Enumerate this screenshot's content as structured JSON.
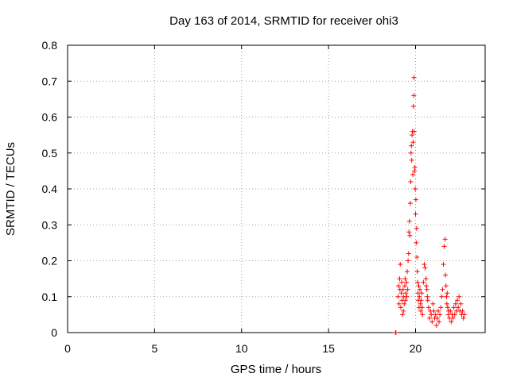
{
  "chart_data": {
    "type": "scatter",
    "title": "Day 163 of 2014, SRMTID for receiver ohi3",
    "xlabel": "GPS time / hours",
    "ylabel": "SRMTID / TECUs",
    "xlim": [
      0,
      24
    ],
    "ylim": [
      0,
      0.8
    ],
    "xticks": [
      "0",
      "5",
      "10",
      "15",
      "20"
    ],
    "xtick_values": [
      0,
      5,
      10,
      15,
      20
    ],
    "yticks": [
      "0",
      "0.1",
      "0.2",
      "0.3",
      "0.4",
      "0.5",
      "0.6",
      "0.7",
      "0.8"
    ],
    "ytick_values": [
      0,
      0.1,
      0.2,
      0.3,
      0.4,
      0.5,
      0.6,
      0.7,
      0.8
    ],
    "grid": true,
    "marker_color": "#ff0000",
    "marker": "+",
    "series": [
      {
        "name": "SRMTID",
        "points": [
          [
            18.85,
            0.0
          ],
          [
            18.87,
            0.0
          ],
          [
            19.0,
            0.1
          ],
          [
            19.02,
            0.13
          ],
          [
            19.05,
            0.08
          ],
          [
            19.08,
            0.15
          ],
          [
            19.1,
            0.12
          ],
          [
            19.12,
            0.19
          ],
          [
            19.15,
            0.07
          ],
          [
            19.18,
            0.11
          ],
          [
            19.2,
            0.14
          ],
          [
            19.22,
            0.09
          ],
          [
            19.25,
            0.05
          ],
          [
            19.28,
            0.12
          ],
          [
            19.3,
            0.06
          ],
          [
            19.32,
            0.1
          ],
          [
            19.35,
            0.08
          ],
          [
            19.38,
            0.13
          ],
          [
            19.4,
            0.15
          ],
          [
            19.42,
            0.09
          ],
          [
            19.45,
            0.11
          ],
          [
            19.48,
            0.14
          ],
          [
            19.5,
            0.1
          ],
          [
            19.52,
            0.17
          ],
          [
            19.55,
            0.12
          ],
          [
            19.57,
            0.2
          ],
          [
            19.6,
            0.22
          ],
          [
            19.62,
            0.28
          ],
          [
            19.65,
            0.31
          ],
          [
            19.67,
            0.27
          ],
          [
            19.7,
            0.36
          ],
          [
            19.72,
            0.42
          ],
          [
            19.74,
            0.5
          ],
          [
            19.76,
            0.52
          ],
          [
            19.78,
            0.48
          ],
          [
            19.8,
            0.55
          ],
          [
            19.82,
            0.56
          ],
          [
            19.84,
            0.44
          ],
          [
            19.86,
            0.53
          ],
          [
            19.88,
            0.63
          ],
          [
            19.9,
            0.66
          ],
          [
            19.91,
            0.71
          ],
          [
            19.92,
            0.56
          ],
          [
            19.94,
            0.45
          ],
          [
            19.96,
            0.46
          ],
          [
            19.98,
            0.4
          ],
          [
            20.0,
            0.33
          ],
          [
            20.02,
            0.37
          ],
          [
            20.04,
            0.25
          ],
          [
            20.06,
            0.29
          ],
          [
            20.08,
            0.21
          ],
          [
            20.1,
            0.17
          ],
          [
            20.12,
            0.14
          ],
          [
            20.14,
            0.11
          ],
          [
            20.16,
            0.09
          ],
          [
            20.18,
            0.13
          ],
          [
            20.2,
            0.07
          ],
          [
            20.22,
            0.1
          ],
          [
            20.25,
            0.12
          ],
          [
            20.28,
            0.08
          ],
          [
            20.3,
            0.06
          ],
          [
            20.32,
            0.09
          ],
          [
            20.35,
            0.11
          ],
          [
            20.38,
            0.07
          ],
          [
            20.4,
            0.05
          ],
          [
            20.45,
            0.14
          ],
          [
            20.5,
            0.19
          ],
          [
            20.55,
            0.18
          ],
          [
            20.6,
            0.15
          ],
          [
            20.62,
            0.13
          ],
          [
            20.65,
            0.12
          ],
          [
            20.68,
            0.1
          ],
          [
            20.7,
            0.09
          ],
          [
            20.75,
            0.07
          ],
          [
            20.8,
            0.04
          ],
          [
            20.85,
            0.06
          ],
          [
            20.9,
            0.05
          ],
          [
            20.95,
            0.03
          ],
          [
            21.0,
            0.08
          ],
          [
            21.05,
            0.06
          ],
          [
            21.1,
            0.04
          ],
          [
            21.15,
            0.05
          ],
          [
            21.2,
            0.02
          ],
          [
            21.25,
            0.04
          ],
          [
            21.3,
            0.06
          ],
          [
            21.35,
            0.03
          ],
          [
            21.4,
            0.05
          ],
          [
            21.45,
            0.07
          ],
          [
            21.5,
            0.1
          ],
          [
            21.55,
            0.12
          ],
          [
            21.6,
            0.19
          ],
          [
            21.65,
            0.24
          ],
          [
            21.7,
            0.26
          ],
          [
            21.72,
            0.16
          ],
          [
            21.75,
            0.13
          ],
          [
            21.78,
            0.1
          ],
          [
            21.8,
            0.08
          ],
          [
            21.82,
            0.11
          ],
          [
            21.85,
            0.07
          ],
          [
            21.88,
            0.05
          ],
          [
            21.9,
            0.06
          ],
          [
            21.95,
            0.04
          ],
          [
            22.0,
            0.06
          ],
          [
            22.05,
            0.03
          ],
          [
            22.1,
            0.05
          ],
          [
            22.15,
            0.04
          ],
          [
            22.2,
            0.07
          ],
          [
            22.25,
            0.05
          ],
          [
            22.3,
            0.08
          ],
          [
            22.35,
            0.06
          ],
          [
            22.4,
            0.09
          ],
          [
            22.45,
            0.07
          ],
          [
            22.5,
            0.1
          ],
          [
            22.55,
            0.06
          ],
          [
            22.6,
            0.08
          ],
          [
            22.65,
            0.05
          ],
          [
            22.7,
            0.06
          ],
          [
            22.75,
            0.04
          ],
          [
            22.8,
            0.05
          ]
        ]
      }
    ]
  }
}
